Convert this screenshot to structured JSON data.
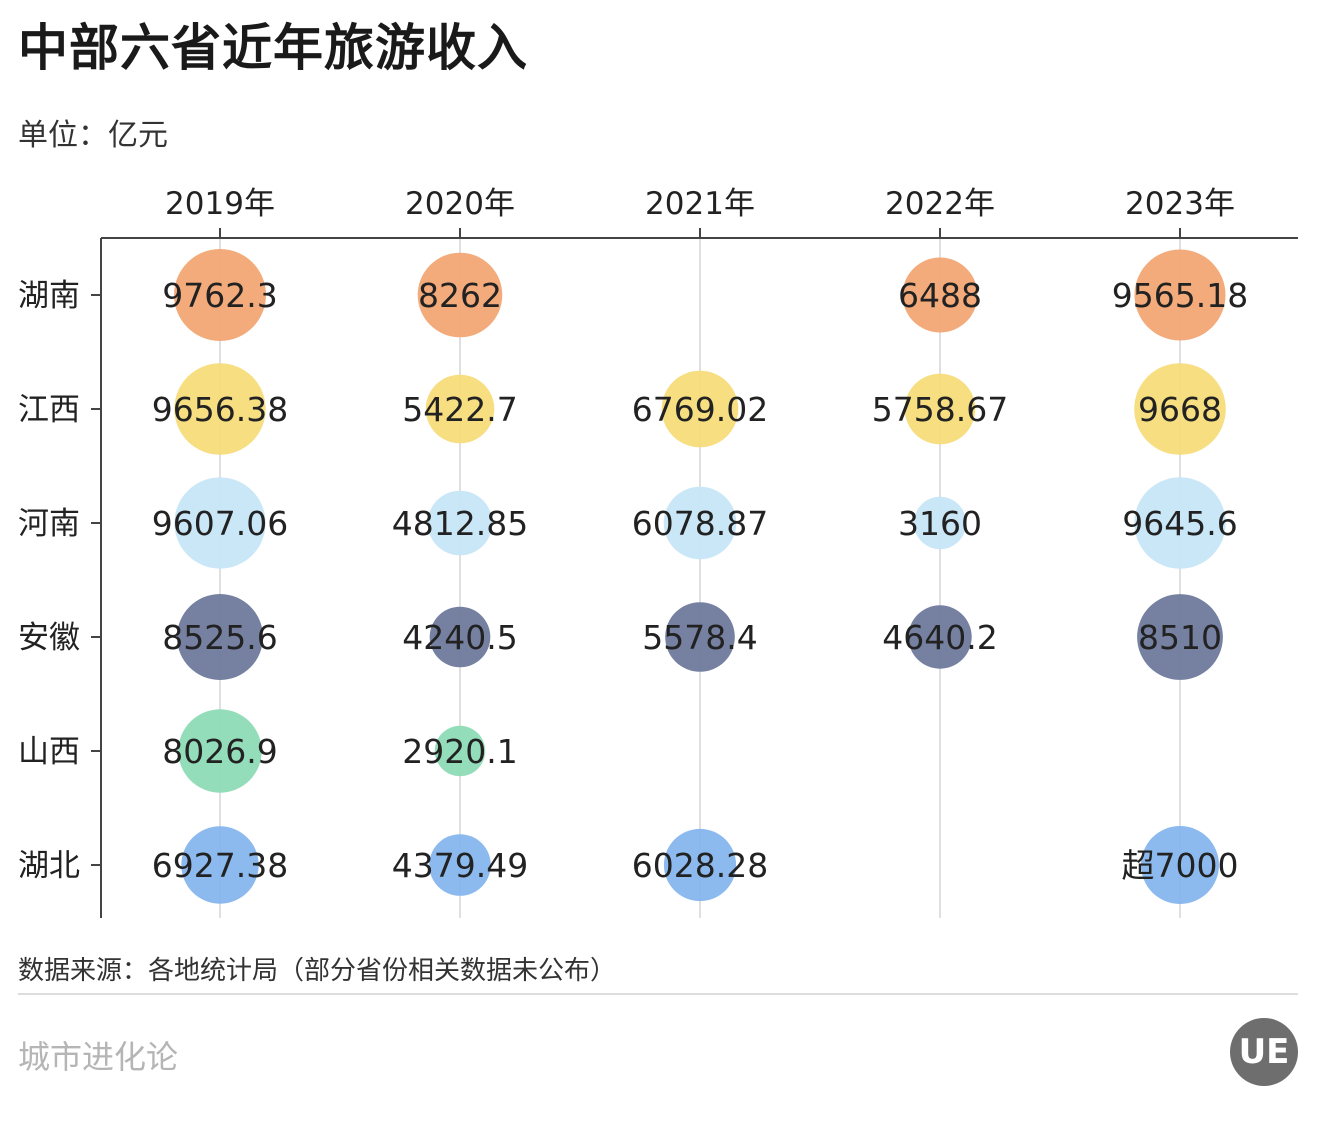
{
  "title": "中部六省近年旅游收入",
  "unit_label": "单位：亿元",
  "source": "数据来源：各地统计局（部分省份相关数据未公布）",
  "brand": "城市进化论",
  "logo_text": "UE",
  "chart_data": {
    "type": "bubble-matrix",
    "x_categories": [
      "2019年",
      "2020年",
      "2021年",
      "2022年",
      "2023年"
    ],
    "y_categories": [
      "湖南",
      "江西",
      "河南",
      "安徽",
      "山西",
      "湖北"
    ],
    "colors": {
      "湖南": "#f2a774",
      "江西": "#f7dc7a",
      "河南": "#c7e6f8",
      "安徽": "#6f7a9c",
      "山西": "#8edbb6",
      "湖北": "#86b6ee"
    },
    "points": [
      {
        "row": "湖南",
        "year": "2019年",
        "value": 9762.3,
        "label": "9762.3"
      },
      {
        "row": "湖南",
        "year": "2020年",
        "value": 8262,
        "label": "8262"
      },
      {
        "row": "湖南",
        "year": "2022年",
        "value": 6488,
        "label": "6488"
      },
      {
        "row": "湖南",
        "year": "2023年",
        "value": 9565.18,
        "label": "9565.18"
      },
      {
        "row": "江西",
        "year": "2019年",
        "value": 9656.38,
        "label": "9656.38"
      },
      {
        "row": "江西",
        "year": "2020年",
        "value": 5422.7,
        "label": "5422.7"
      },
      {
        "row": "江西",
        "year": "2021年",
        "value": 6769.02,
        "label": "6769.02"
      },
      {
        "row": "江西",
        "year": "2022年",
        "value": 5758.67,
        "label": "5758.67"
      },
      {
        "row": "江西",
        "year": "2023年",
        "value": 9668,
        "label": "9668"
      },
      {
        "row": "河南",
        "year": "2019年",
        "value": 9607.06,
        "label": "9607.06"
      },
      {
        "row": "河南",
        "year": "2020年",
        "value": 4812.85,
        "label": "4812.85"
      },
      {
        "row": "河南",
        "year": "2021年",
        "value": 6078.87,
        "label": "6078.87"
      },
      {
        "row": "河南",
        "year": "2022年",
        "value": 3160,
        "label": "3160"
      },
      {
        "row": "河南",
        "year": "2023年",
        "value": 9645.6,
        "label": "9645.6"
      },
      {
        "row": "安徽",
        "year": "2019年",
        "value": 8525.6,
        "label": "8525.6"
      },
      {
        "row": "安徽",
        "year": "2020年",
        "value": 4240.5,
        "label": "4240.5"
      },
      {
        "row": "安徽",
        "year": "2021年",
        "value": 5578.4,
        "label": "5578.4"
      },
      {
        "row": "安徽",
        "year": "2022年",
        "value": 4640.2,
        "label": "4640.2"
      },
      {
        "row": "安徽",
        "year": "2023年",
        "value": 8510,
        "label": "8510"
      },
      {
        "row": "山西",
        "year": "2019年",
        "value": 8026.9,
        "label": "8026.9"
      },
      {
        "row": "山西",
        "year": "2020年",
        "value": 2920.1,
        "label": "2920.1"
      },
      {
        "row": "湖北",
        "year": "2019年",
        "value": 6927.38,
        "label": "6927.38"
      },
      {
        "row": "湖北",
        "year": "2020年",
        "value": 4379.49,
        "label": "4379.49"
      },
      {
        "row": "湖北",
        "year": "2021年",
        "value": 6028.28,
        "label": "6028.28"
      },
      {
        "row": "湖北",
        "year": "2023年",
        "value": 7000,
        "label": "超7000"
      }
    ],
    "grid": true
  }
}
